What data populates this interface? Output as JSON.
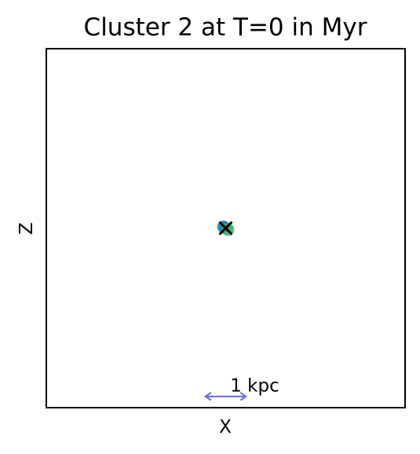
{
  "chart_data": {
    "type": "scatter",
    "title": "Cluster 2 at T=0 in Myr",
    "xlabel": "X",
    "ylabel": "Z",
    "xlim": [
      -4,
      4
    ],
    "ylim": [
      -4,
      4
    ],
    "grid": false,
    "ticks_visible": false,
    "points": [
      {
        "x": 0.0,
        "y": 0.0,
        "color": "#2ca58d"
      },
      {
        "x": -0.05,
        "y": 0.03,
        "color": "#1f77b4"
      },
      {
        "x": 0.05,
        "y": -0.03,
        "color": "#3cb371"
      }
    ],
    "center_marker": {
      "x": 0.0,
      "y": 0.0,
      "symbol": "x",
      "color": "#000000"
    },
    "scale_bar": {
      "x_start": -0.45,
      "x_end": 0.45,
      "y": -3.75,
      "label": "1 kpc",
      "color": "#6666ee"
    }
  }
}
